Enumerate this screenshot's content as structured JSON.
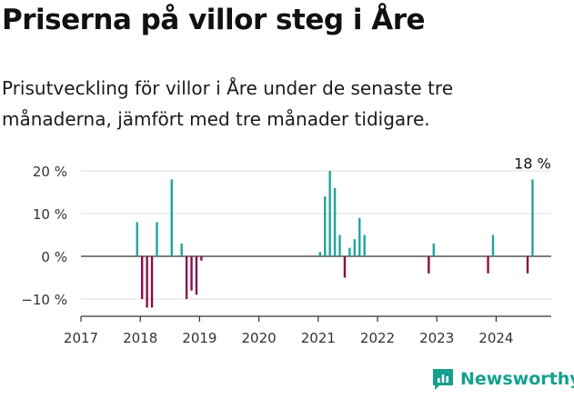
{
  "page": {
    "title": "Priserna på villor steg i Åre",
    "subtitle": "Prisutveckling för villor i Åre under de senaste tre månaderna, jämfört med tre månader tidigare.",
    "brand": "Newsworthy"
  },
  "colors": {
    "positive": "#20a59a",
    "negative": "#8a0f45",
    "axis": "#333333",
    "grid": "#dddddd",
    "brand": "#15a090"
  },
  "chart_data": {
    "type": "bar",
    "title": "",
    "xlabel": "",
    "ylabel": "",
    "ylim": [
      -12,
      20
    ],
    "xlim": [
      "2017-01",
      "2024-12"
    ],
    "yticks": [
      20,
      10,
      0,
      -10
    ],
    "ytick_labels": [
      "20 %",
      "10 %",
      "0 %",
      "−10 %"
    ],
    "xtick_labels": [
      "2017",
      "2018",
      "2019",
      "2020",
      "2021",
      "2022",
      "2023",
      "2024"
    ],
    "annotation": {
      "label": "18 %",
      "x": "2024-08",
      "y": 18
    },
    "x": [
      "2017-12",
      "2018-01",
      "2018-02",
      "2018-03",
      "2018-04",
      "2018-07",
      "2018-09",
      "2018-10",
      "2018-11",
      "2018-12",
      "2019-01",
      "2021-01",
      "2021-02",
      "2021-03",
      "2021-04",
      "2021-05",
      "2021-06",
      "2021-07",
      "2021-08",
      "2021-09",
      "2021-10",
      "2022-11",
      "2022-12",
      "2023-11",
      "2023-12",
      "2024-07",
      "2024-08"
    ],
    "values": [
      8,
      -10,
      -12,
      -12,
      8,
      18,
      3,
      -10,
      -8,
      -9,
      -1,
      1,
      14,
      20,
      16,
      5,
      -5,
      2,
      4,
      9,
      5,
      -4,
      3,
      -4,
      5,
      -4,
      18
    ]
  }
}
